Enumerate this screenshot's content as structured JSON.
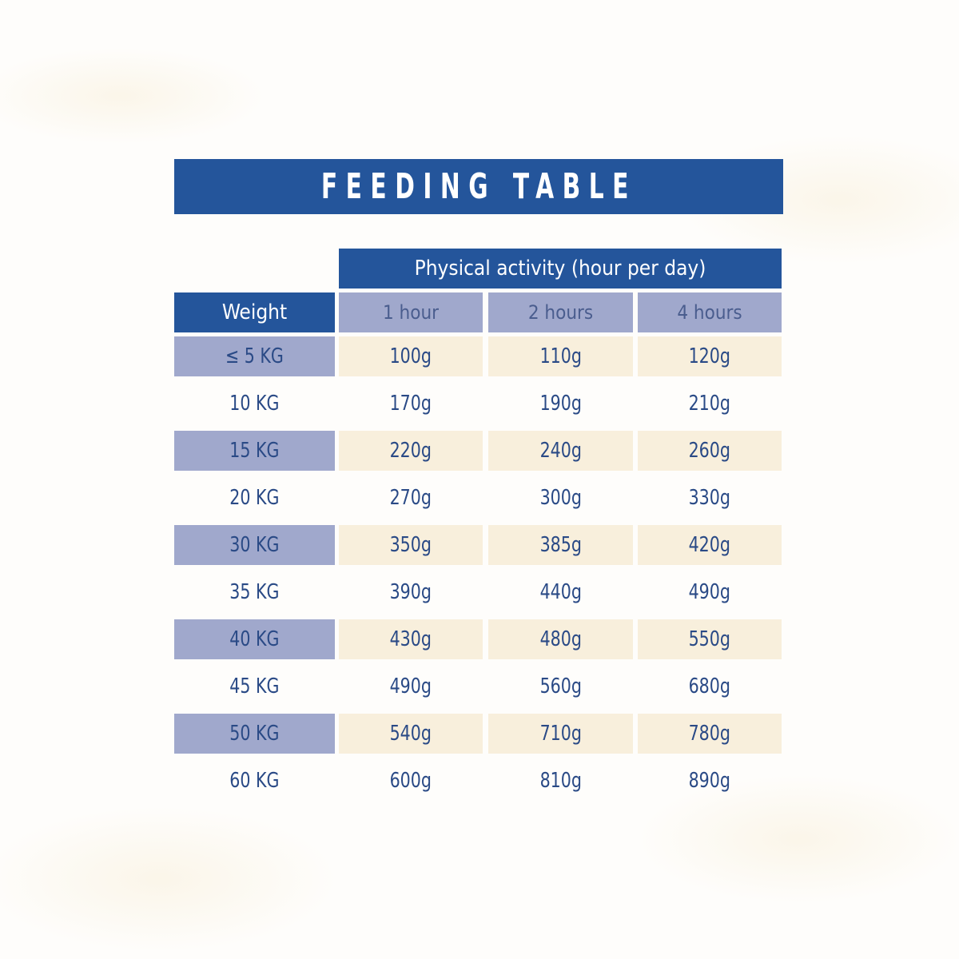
{
  "title": "FEEDING TABLE",
  "activity_header": "Physical activity (hour per day)",
  "columns": [
    "Weight",
    "1 hour",
    "2 hours",
    "4 hours"
  ],
  "rows": [
    {
      "weight": "≤ 5 KG",
      "values": [
        "100g",
        "110g",
        "120g"
      ]
    },
    {
      "weight": "10 KG",
      "values": [
        "170g",
        "190g",
        "210g"
      ]
    },
    {
      "weight": "15 KG",
      "values": [
        "220g",
        "240g",
        "260g"
      ]
    },
    {
      "weight": "20 KG",
      "values": [
        "270g",
        "300g",
        "330g"
      ]
    },
    {
      "weight": "30 KG",
      "values": [
        "350g",
        "385g",
        "420g"
      ]
    },
    {
      "weight": "35 KG",
      "values": [
        "390g",
        "440g",
        "490g"
      ]
    },
    {
      "weight": "40 KG",
      "values": [
        "430g",
        "480g",
        "550g"
      ]
    },
    {
      "weight": "45 KG",
      "values": [
        "490g",
        "560g",
        "680g"
      ]
    },
    {
      "weight": "50 KG",
      "values": [
        "540g",
        "710g",
        "780g"
      ]
    },
    {
      "weight": "60 KG",
      "values": [
        "600g",
        "810g",
        "890g"
      ]
    }
  ],
  "colors": {
    "header_blue": "#24559b",
    "lavender": "#a0a8cc",
    "cream": "#f8efdc",
    "text": "#2a4a86"
  }
}
